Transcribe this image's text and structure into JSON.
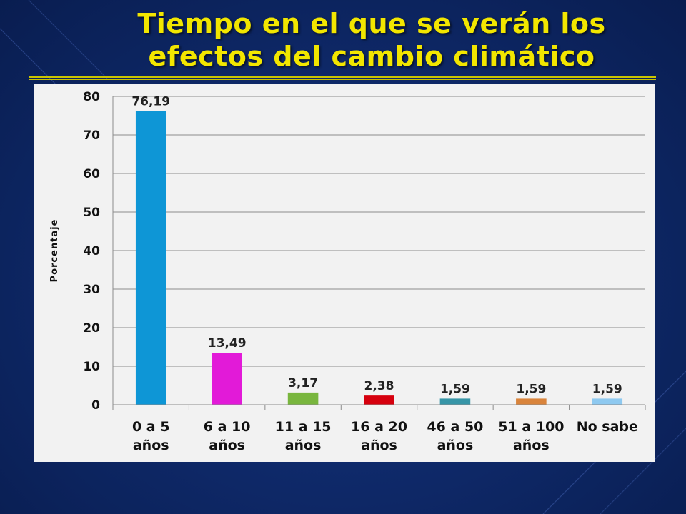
{
  "slide": {
    "title_line1": "Tiempo en el que se verán los",
    "title_line2": "efectos del cambio climático",
    "accent_color": "#f2e600",
    "background_color": "#0f2a6b"
  },
  "chart_data": {
    "type": "bar",
    "title": "",
    "ylabel": "Porcentaje",
    "xlabel": "",
    "ylim": [
      0,
      80
    ],
    "yticks": [
      "0",
      "10",
      "20",
      "30",
      "40",
      "50",
      "60",
      "70",
      "80"
    ],
    "grid": true,
    "categories": [
      [
        "0 a 5",
        "años"
      ],
      [
        "6 a 10",
        "años"
      ],
      [
        "11 a 15",
        "años"
      ],
      [
        "16 a 20",
        "años"
      ],
      [
        "46 a 50",
        "años"
      ],
      [
        "51 a 100",
        "años"
      ],
      [
        "No sabe"
      ]
    ],
    "values": [
      76.19,
      13.49,
      3.17,
      2.38,
      1.59,
      1.59,
      1.59
    ],
    "data_labels": [
      "76,19",
      "13,49",
      "3,17",
      "2,38",
      "1,59",
      "1,59",
      "1,59"
    ],
    "colors": [
      "#0e96d6",
      "#e21ad8",
      "#79b63e",
      "#d6000e",
      "#3795a7",
      "#d9843c",
      "#8ec9f0"
    ]
  }
}
